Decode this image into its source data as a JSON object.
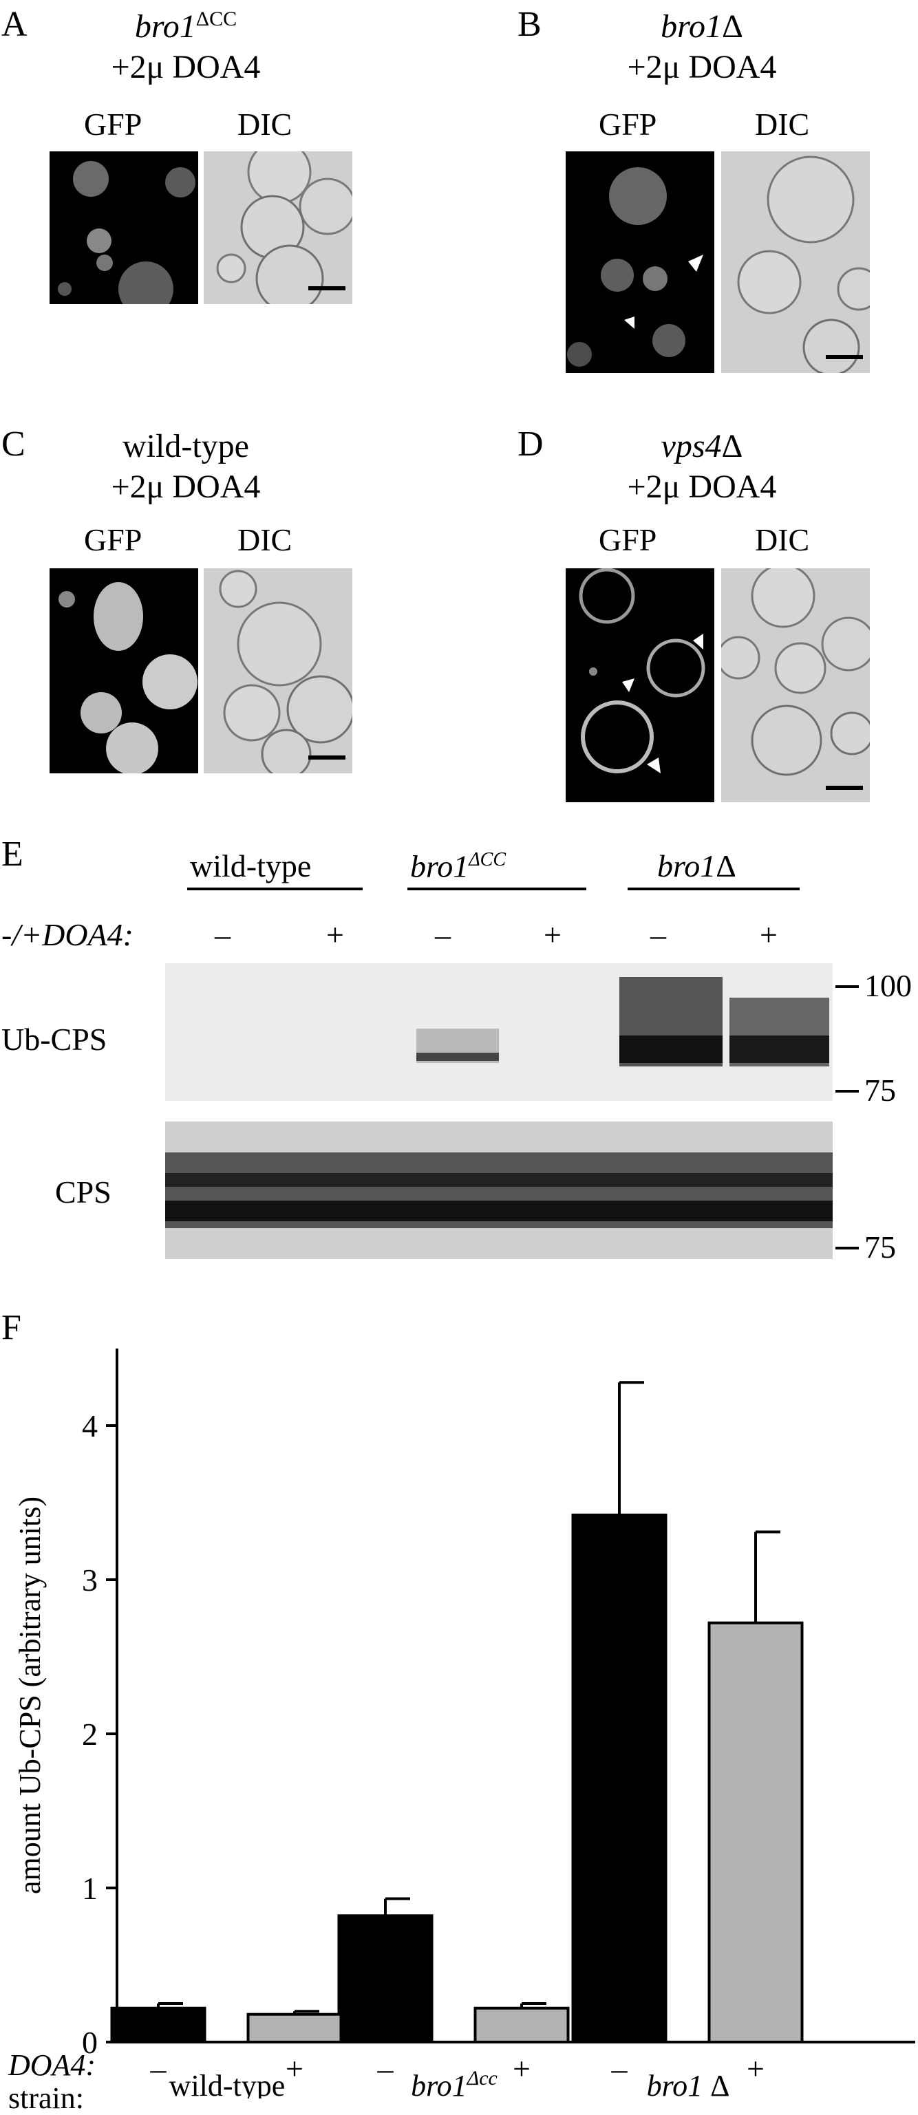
{
  "panels": {
    "A": {
      "letter": "A",
      "title_italic": "bro1",
      "title_sup": "ΔCC",
      "title_line2": "+2μ DOA4",
      "gfp": "GFP",
      "dic": "DIC"
    },
    "B": {
      "letter": "B",
      "title_italic": "bro1",
      "title_sup": "Δ",
      "title_line2": "+2μ DOA4",
      "gfp": "GFP",
      "dic": "DIC"
    },
    "C": {
      "letter": "C",
      "title_plain": "wild-type",
      "title_line2": "+2μ DOA4",
      "gfp": "GFP",
      "dic": "DIC"
    },
    "D": {
      "letter": "D",
      "title_italic": "vps4",
      "title_sup": "Δ",
      "title_line2": "+2μ DOA4",
      "gfp": "GFP",
      "dic": "DIC"
    }
  },
  "blot": {
    "letter": "E",
    "groups": [
      "wild-type",
      "bro1",
      "bro1"
    ],
    "group_sups": [
      "",
      "ΔCC",
      "Δ"
    ],
    "row_label": "-/+DOA4:",
    "lane_signs": [
      "–",
      "+",
      "–",
      "+",
      "–",
      "+"
    ],
    "ubcps_label": "Ub-CPS",
    "cps_label": "CPS",
    "markers_top": [
      "100",
      "75"
    ],
    "markers_bottom": [
      "75"
    ]
  },
  "chart_data": {
    "type": "bar",
    "letter": "F",
    "ylabel": "amount Ub-CPS (arbitrary units)",
    "ylim": [
      0,
      4.5
    ],
    "yticks": [
      0,
      1,
      2,
      3,
      4
    ],
    "categories": [
      "wild-type",
      "bro1 ΔCC",
      "bro1 Δ"
    ],
    "category_labels": {
      "wildtype": "wild-type",
      "bro1cc_italic": "bro1",
      "bro1cc_sup": "Δcc",
      "bro1d_italic": "bro1",
      "bro1d_sup": "Δ"
    },
    "series": [
      {
        "name": "–",
        "color": "#000000",
        "values": [
          0.22,
          0.82,
          3.42
        ],
        "errors": [
          0.03,
          0.11,
          0.86
        ]
      },
      {
        "name": "+",
        "color": "#b3b3b3",
        "values": [
          0.18,
          0.22,
          2.72
        ],
        "errors": [
          0.02,
          0.03,
          0.59
        ]
      }
    ],
    "doa4_label": "DOA4:",
    "strain_label": "strain:",
    "signs": [
      "–",
      "+",
      "–",
      "+",
      "–",
      "+"
    ]
  },
  "colors": {
    "black_bar": "#000000",
    "gray_bar": "#b3b3b3",
    "dic_bg": "#cfcfcf"
  }
}
